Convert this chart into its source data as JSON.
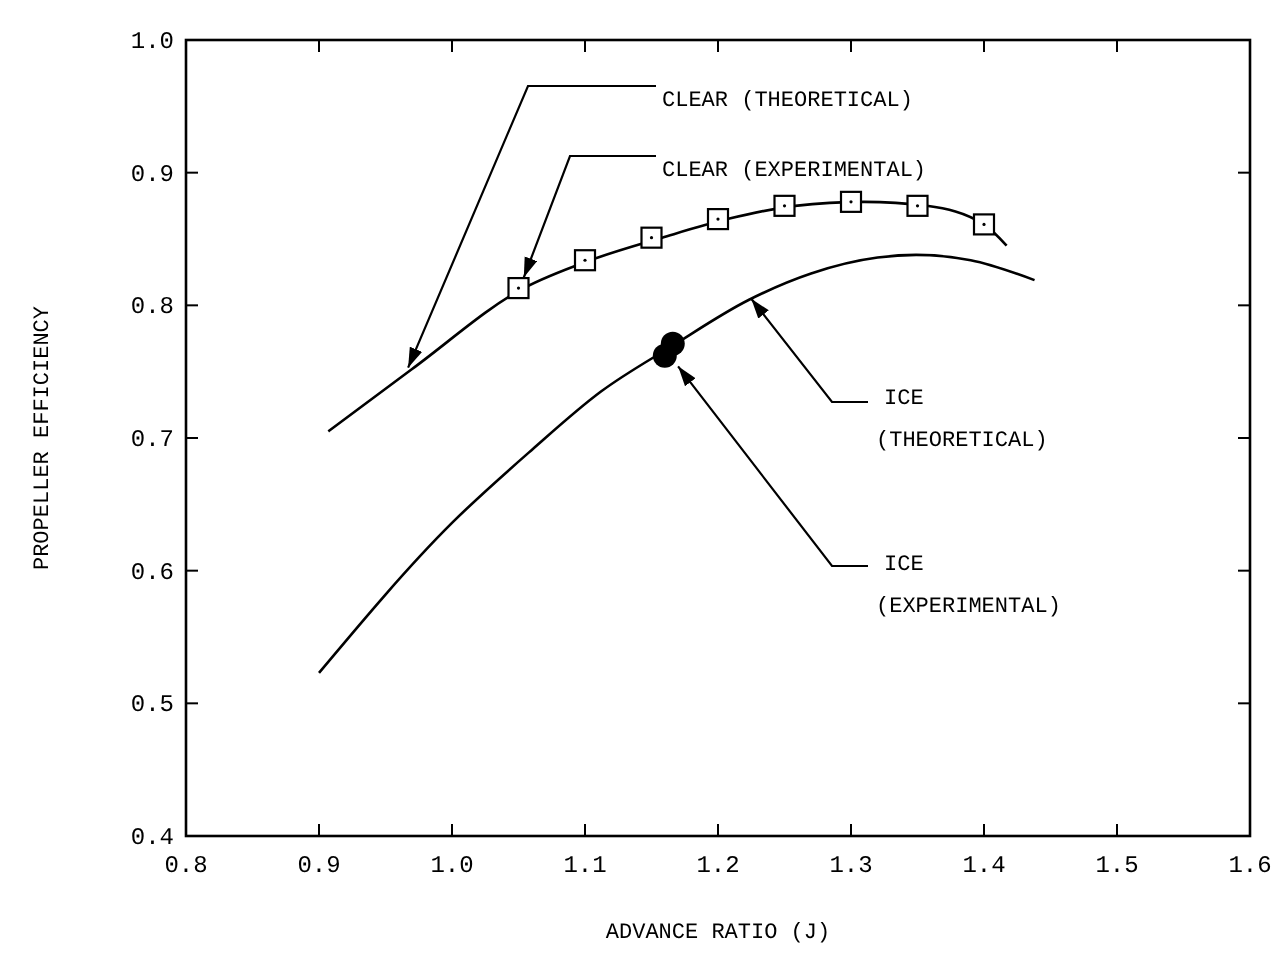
{
  "chart_data": {
    "type": "line",
    "xlabel": "ADVANCE RATIO (J)",
    "ylabel": "PROPELLER EFFICIENCY",
    "xlim": [
      0.8,
      1.6
    ],
    "ylim": [
      0.4,
      1.0
    ],
    "xticks": [
      0.8,
      0.9,
      {
        "value": 1,
        "label": "1.0"
      },
      1.1,
      1.2,
      1.3,
      1.4,
      1.5,
      1.6
    ],
    "yticks": [
      0.4,
      0.5,
      0.6,
      0.7,
      0.8,
      0.9,
      {
        "value": 1,
        "label": "1.0"
      }
    ],
    "grid": false,
    "series": [
      {
        "type": "line",
        "color": "#000000",
        "marker": "none",
        "x": [
          0.907,
          0.97,
          1.054,
          1.104,
          1.158,
          1.207,
          1.258,
          1.31,
          1.357,
          1.4,
          1.417
        ],
        "values": [
          0.705,
          0.752,
          0.813,
          0.834,
          0.851,
          0.865,
          0.875,
          0.878,
          0.875,
          0.861,
          0.845
        ]
      },
      {
        "type": "scatter",
        "color": "#000000",
        "marker": "square",
        "x": [
          1.05,
          1.1,
          1.15,
          1.2,
          1.25,
          1.3,
          1.35,
          1.4
        ],
        "values": [
          0.813,
          0.834,
          0.851,
          0.865,
          0.875,
          0.878,
          0.875,
          0.861
        ]
      },
      {
        "type": "line",
        "color": "#000000",
        "marker": "none",
        "x": [
          0.9,
          1.0,
          1.06,
          1.112,
          1.165,
          1.223,
          1.27,
          1.32,
          1.349,
          1.39,
          1.438
        ],
        "values": [
          0.523,
          0.636,
          0.691,
          0.735,
          0.769,
          0.804,
          0.824,
          0.836,
          0.838,
          0.834,
          0.819
        ]
      },
      {
        "type": "scatter",
        "color": "#000000",
        "marker": "circle",
        "x": [
          1.16,
          1.166
        ],
        "values": [
          0.762,
          0.771
        ]
      }
    ],
    "annotations": [
      {
        "text": "CLEAR (THEORETICAL)",
        "x": 0.967,
        "y": 0.753
      },
      {
        "text": "CLEAR (EXPERIMENTAL)",
        "x": 1.054,
        "y": 0.821
      },
      {
        "text": "ICE\n(THEORETICAL)",
        "x": 1.225,
        "y": 0.805
      },
      {
        "text": "ICE\n(EXPERIMENTAL)",
        "x": 1.17,
        "y": 0.754
      }
    ]
  }
}
